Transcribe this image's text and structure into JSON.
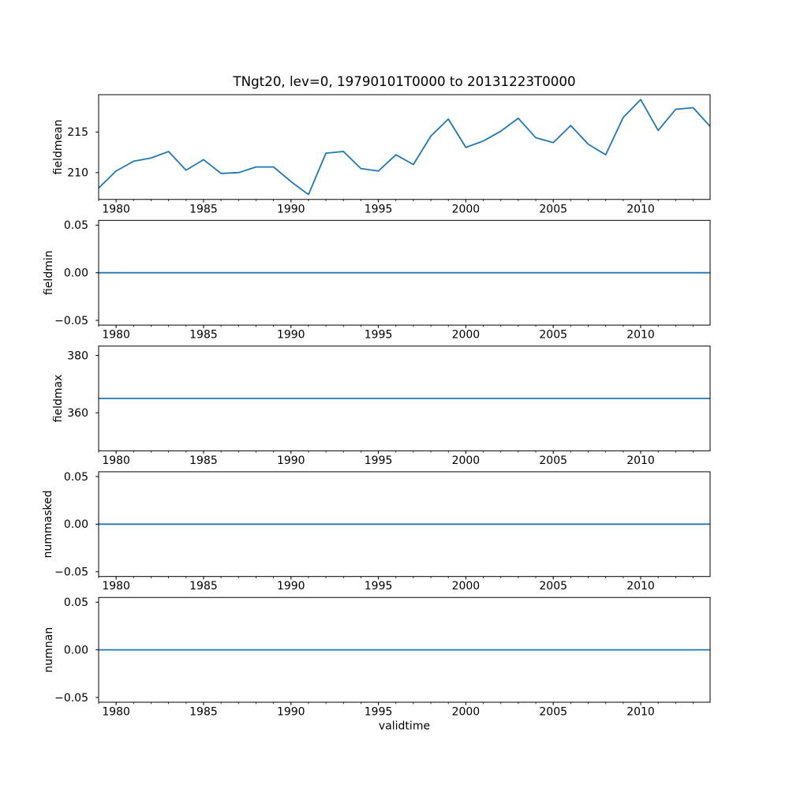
{
  "figure": {
    "title": "TNgt20, lev=0, 19790101T0000 to 20131223T0000",
    "xlabel": "validtime",
    "line_color": "#1f77b4",
    "axis_color": "#000000",
    "text_color": "#000000",
    "background_color": "#ffffff"
  },
  "axes_shared": {
    "xlim": [
      1979.0,
      2013.97
    ],
    "xticks_major": [
      1980,
      1985,
      1990,
      1995,
      2000,
      2005,
      2010
    ],
    "xtick_labels": [
      "1980",
      "1985",
      "1990",
      "1995",
      "2000",
      "2005",
      "2010"
    ],
    "xticks_minor_start": 1979,
    "xticks_minor_end": 2013,
    "xticks_minor_step": 1,
    "grid": false,
    "legend": "none"
  },
  "chart_data": [
    {
      "type": "line",
      "name": "fieldmean",
      "ylabel": "fieldmean",
      "ylim": [
        206.7,
        219.6
      ],
      "yticks": [
        210,
        215
      ],
      "ytick_labels": [
        "210",
        "215"
      ],
      "x": [
        1979,
        1980,
        1981,
        1982,
        1983,
        1984,
        1985,
        1986,
        1987,
        1988,
        1989,
        1990,
        1991,
        1992,
        1993,
        1994,
        1995,
        1996,
        1997,
        1998,
        1999,
        2000,
        2001,
        2002,
        2003,
        2004,
        2005,
        2006,
        2007,
        2008,
        2009,
        2010,
        2011,
        2012,
        2013,
        2013.97
      ],
      "y": [
        208.1,
        210.2,
        211.4,
        211.8,
        212.6,
        210.3,
        211.6,
        209.9,
        210.0,
        210.7,
        210.7,
        208.9,
        207.3,
        212.4,
        212.6,
        210.5,
        210.2,
        212.2,
        211.0,
        214.5,
        216.6,
        213.1,
        213.9,
        215.1,
        216.7,
        214.3,
        213.7,
        215.8,
        213.5,
        212.2,
        216.8,
        219.0,
        215.2,
        217.8,
        218.0,
        215.7
      ]
    },
    {
      "type": "line",
      "name": "fieldmin",
      "ylabel": "fieldmin",
      "ylim": [
        -0.055,
        0.055
      ],
      "yticks": [
        0.05,
        0.0,
        -0.05
      ],
      "ytick_labels": [
        "0.05",
        "0.00",
        "−0.05"
      ],
      "x": [
        1979.0,
        2013.97
      ],
      "y": [
        0.0,
        0.0
      ]
    },
    {
      "type": "line",
      "name": "fieldmax",
      "ylabel": "fieldmax",
      "ylim": [
        346.75,
        383.25
      ],
      "yticks": [
        380,
        360
      ],
      "ytick_labels": [
        "380",
        "360"
      ],
      "x": [
        1979.0,
        2013.97
      ],
      "y": [
        365.0,
        365.0
      ]
    },
    {
      "type": "line",
      "name": "nummasked",
      "ylabel": "nummasked",
      "ylim": [
        -0.055,
        0.055
      ],
      "yticks": [
        0.05,
        0.0,
        -0.05
      ],
      "ytick_labels": [
        "0.05",
        "0.00",
        "−0.05"
      ],
      "x": [
        1979.0,
        2013.97
      ],
      "y": [
        0.0,
        0.0
      ]
    },
    {
      "type": "line",
      "name": "numnan",
      "ylabel": "numnan",
      "ylim": [
        -0.055,
        0.055
      ],
      "yticks": [
        0.05,
        0.0,
        -0.05
      ],
      "ytick_labels": [
        "0.05",
        "0.00",
        "−0.05"
      ],
      "x": [
        1979.0,
        2013.97
      ],
      "y": [
        0.0,
        0.0
      ],
      "xlabel": "validtime"
    }
  ]
}
